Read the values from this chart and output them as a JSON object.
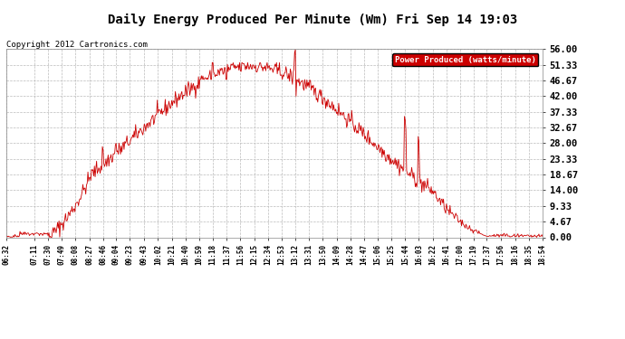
{
  "title": "Daily Energy Produced Per Minute (Wm) Fri Sep 14 19:03",
  "copyright": "Copyright 2012 Cartronics.com",
  "legend_label": "Power Produced (watts/minute)",
  "legend_bg": "#cc0000",
  "line_color": "#cc0000",
  "bg_color": "#ffffff",
  "plot_bg_color": "#ffffff",
  "grid_color": "#bbbbbb",
  "ylim": [
    0,
    56.0
  ],
  "yticks": [
    0.0,
    4.67,
    9.33,
    14.0,
    18.67,
    23.33,
    28.0,
    32.67,
    37.33,
    42.0,
    46.67,
    51.33,
    56.0
  ],
  "ytick_labels": [
    "0.00",
    "4.67",
    "9.33",
    "14.00",
    "18.67",
    "23.33",
    "28.00",
    "32.67",
    "37.33",
    "42.00",
    "46.67",
    "51.33",
    "56.00"
  ],
  "xtick_labels": [
    "06:32",
    "07:11",
    "07:30",
    "07:49",
    "08:08",
    "08:27",
    "08:46",
    "09:04",
    "09:23",
    "09:43",
    "10:02",
    "10:21",
    "10:40",
    "10:59",
    "11:18",
    "11:37",
    "11:56",
    "12:15",
    "12:34",
    "12:53",
    "13:12",
    "13:31",
    "13:50",
    "14:09",
    "14:28",
    "14:47",
    "15:06",
    "15:25",
    "15:44",
    "16:03",
    "16:22",
    "16:41",
    "17:00",
    "17:19",
    "17:37",
    "17:56",
    "18:16",
    "18:35",
    "18:54"
  ],
  "figsize": [
    6.9,
    3.75
  ],
  "dpi": 100
}
